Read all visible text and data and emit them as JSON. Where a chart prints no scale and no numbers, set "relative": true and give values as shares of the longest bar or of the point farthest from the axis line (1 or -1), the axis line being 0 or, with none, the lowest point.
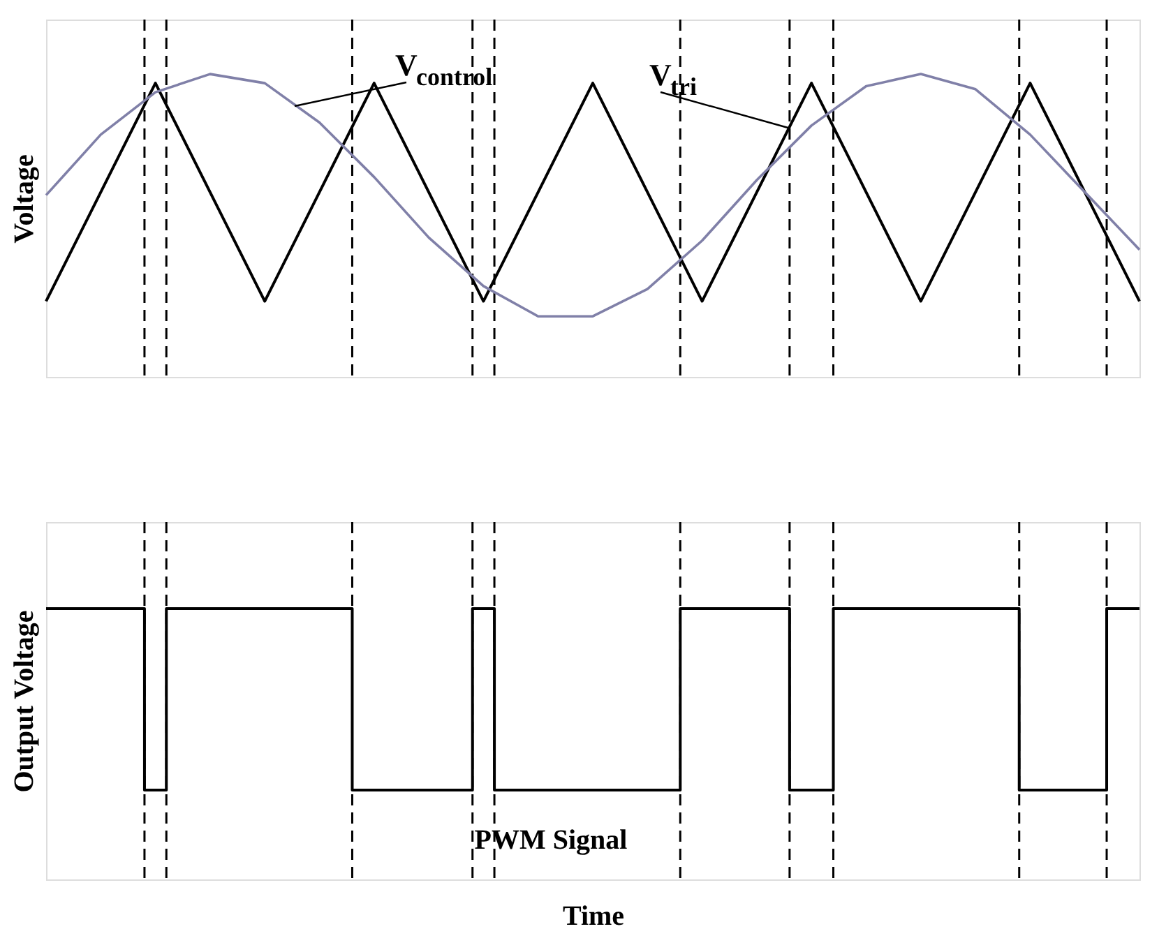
{
  "chart_data": [
    {
      "type": "line",
      "relative": true,
      "ylabel": "Voltage",
      "grid": "x",
      "categories": [
        null,
        null,
        null,
        null,
        null,
        null,
        null,
        null,
        null,
        null,
        null,
        null,
        null,
        null,
        null,
        null,
        null,
        null,
        null,
        null,
        null
      ],
      "series": [
        {
          "color": "#000000",
          "values": [
            0.25,
            0.61,
            0.97,
            0.61,
            0.25,
            0.61,
            0.97,
            0.61,
            0.25,
            0.61,
            0.97,
            0.61,
            0.25,
            0.61,
            0.97,
            0.61,
            0.25,
            0.61,
            0.97,
            0.61,
            0.25
          ]
        },
        {
          "color": "#8080a8",
          "values": [
            0.6,
            0.8,
            0.94,
            1.0,
            0.97,
            0.84,
            0.66,
            0.46,
            0.3,
            0.2,
            0.2,
            0.29,
            0.45,
            0.65,
            0.83,
            0.96,
            1.0,
            0.95,
            0.8,
            0.61,
            0.42
          ]
        }
      ],
      "annotations": [
        "V$_{control}$",
        "V$_{tri}$"
      ]
    },
    {
      "type": "step",
      "relative": true,
      "ylabel": "Output Voltage",
      "xlabel": "Time",
      "grid": "x",
      "categories": [
        null,
        null,
        null,
        null,
        null,
        null,
        null,
        null,
        null,
        null,
        null,
        null,
        null,
        null,
        null,
        null,
        null,
        null,
        null,
        null,
        null,
        null,
        null,
        null,
        null,
        null,
        null,
        null,
        null,
        null,
        null,
        null,
        null,
        null,
        null,
        null,
        null,
        null,
        null,
        null,
        null,
        null,
        null,
        null,
        null,
        null,
        null,
        null,
        null,
        null,
        null,
        null,
        null,
        null,
        null,
        null,
        null,
        null,
        null,
        null,
        null,
        null,
        null,
        null,
        null,
        null,
        null,
        null,
        null,
        null,
        null,
        null,
        null,
        null,
        null,
        null,
        null,
        null,
        null,
        null,
        null,
        null,
        null,
        null,
        null,
        null,
        null,
        null,
        null,
        null,
        null,
        null,
        null,
        null,
        null,
        null,
        null,
        null,
        null,
        null,
        null
      ],
      "series": [
        {
          "color": "#000000",
          "values": [
            1,
            1,
            1,
            1,
            1,
            1,
            1,
            1,
            1,
            0.33,
            0.33,
            1,
            1,
            1,
            1,
            1,
            1,
            1,
            1,
            1,
            1,
            1,
            1,
            1,
            1,
            1,
            1,
            1,
            0.33,
            0.33,
            0.33,
            0.33,
            0.33,
            0.33,
            0.33,
            0.33,
            0.33,
            0.33,
            0.33,
            1,
            1,
            0.33,
            0.33,
            0.33,
            0.33,
            0.33,
            0.33,
            0.33,
            0.33,
            0.33,
            0.33,
            0.33,
            0.33,
            0.33,
            0.33,
            0.33,
            0.33,
            0.33,
            1,
            1,
            1,
            1,
            1,
            1,
            1,
            1,
            1,
            1,
            0.33,
            0.33,
            0.33,
            0.33,
            1,
            1,
            1,
            1,
            1,
            1,
            1,
            1,
            1,
            1,
            1,
            1,
            1,
            1,
            1,
            1,
            1,
            0.33,
            0.33,
            0.33,
            0.33,
            0.33,
            0.33,
            0.33,
            0.33,
            1,
            1,
            1,
            1
          ]
        }
      ],
      "annotations": [
        "PWM Signal"
      ]
    }
  ]
}
